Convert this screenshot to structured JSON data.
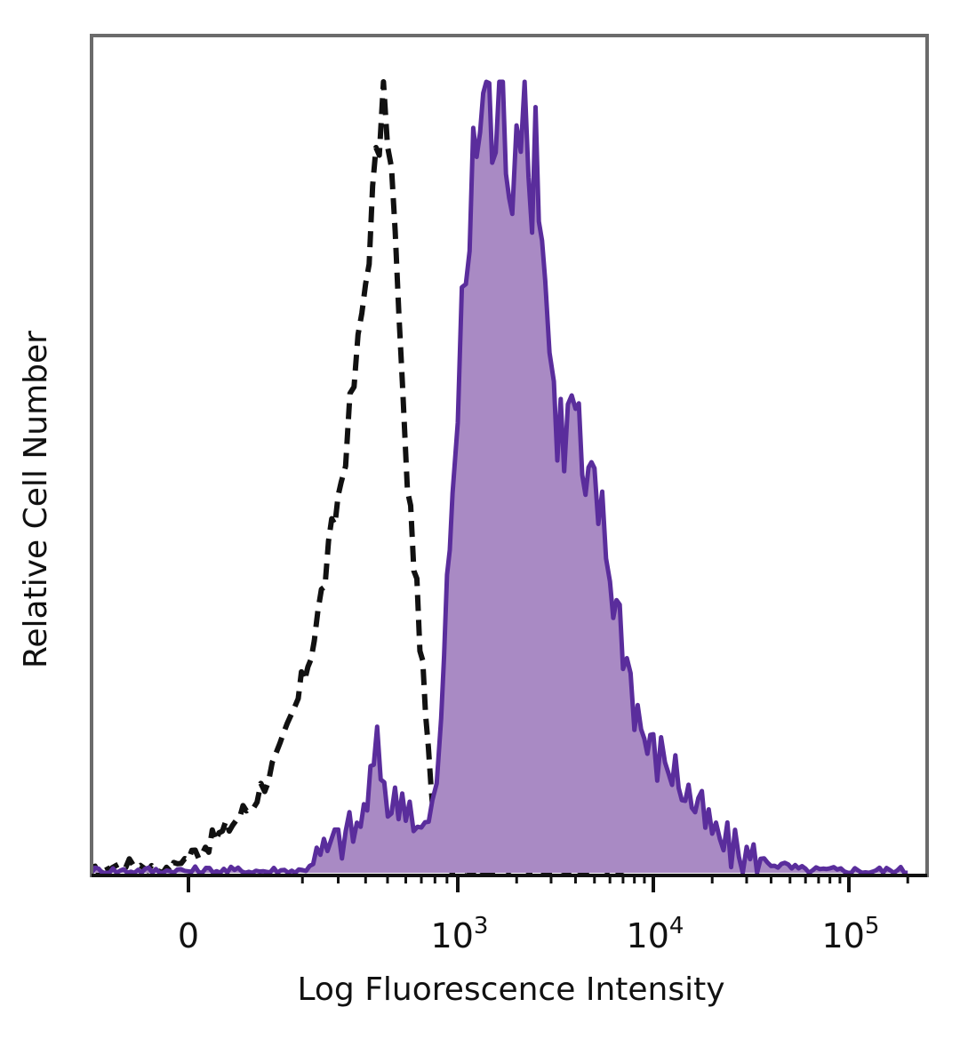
{
  "chart_data": {
    "type": "area",
    "xlabel": "Log Fluorescence Intensity",
    "ylabel": "Relative Cell Number",
    "x_scale": "biexponential",
    "xlim": [
      -300,
      200000
    ],
    "ylim": [
      0,
      1
    ],
    "grid": false,
    "ticks": [
      {
        "value": 0,
        "base": "0",
        "exp": ""
      },
      {
        "value": 1000,
        "base": "10",
        "exp": "3"
      },
      {
        "value": 10000,
        "base": "10",
        "exp": "4"
      },
      {
        "value": 100000,
        "base": "10",
        "exp": "5"
      }
    ],
    "series": [
      {
        "style": "dashed",
        "color": "#111111",
        "fill": "none",
        "points": [
          [
            -300,
            0.0
          ],
          [
            -150,
            0.01
          ],
          [
            -50,
            0.0
          ],
          [
            0,
            0.02
          ],
          [
            50,
            0.05
          ],
          [
            100,
            0.09
          ],
          [
            150,
            0.15
          ],
          [
            190,
            0.22
          ],
          [
            230,
            0.3
          ],
          [
            270,
            0.4
          ],
          [
            310,
            0.5
          ],
          [
            340,
            0.58
          ],
          [
            370,
            0.66
          ],
          [
            400,
            0.75
          ],
          [
            430,
            0.85
          ],
          [
            460,
            0.93
          ],
          [
            480,
            0.99
          ],
          [
            500,
            0.95
          ],
          [
            520,
            0.88
          ],
          [
            540,
            0.8
          ],
          [
            560,
            0.7
          ],
          [
            580,
            0.6
          ],
          [
            610,
            0.5
          ],
          [
            650,
            0.4
          ],
          [
            690,
            0.3
          ],
          [
            730,
            0.2
          ],
          [
            770,
            0.1
          ],
          [
            810,
            0.04
          ],
          [
            860,
            0.01
          ],
          [
            950,
            0.0
          ],
          [
            1200,
            0.0
          ],
          [
            10000,
            0.0
          ]
        ]
      },
      {
        "style": "solid",
        "color": "#5a2d9c",
        "fill": "#a98ac4",
        "points": [
          [
            -300,
            0.0
          ],
          [
            200,
            0.0
          ],
          [
            300,
            0.04
          ],
          [
            380,
            0.06
          ],
          [
            450,
            0.15
          ],
          [
            520,
            0.08
          ],
          [
            600,
            0.1
          ],
          [
            700,
            0.05
          ],
          [
            780,
            0.07
          ],
          [
            850,
            0.18
          ],
          [
            900,
            0.35
          ],
          [
            950,
            0.5
          ],
          [
            1000,
            0.6
          ],
          [
            1100,
            0.75
          ],
          [
            1200,
            0.88
          ],
          [
            1300,
            0.97
          ],
          [
            1400,
            1.0
          ],
          [
            1500,
            0.93
          ],
          [
            1700,
            0.97
          ],
          [
            1900,
            0.9
          ],
          [
            2100,
            1.0
          ],
          [
            2300,
            0.85
          ],
          [
            2500,
            0.95
          ],
          [
            2800,
            0.75
          ],
          [
            3100,
            0.6
          ],
          [
            3500,
            0.55
          ],
          [
            4000,
            0.6
          ],
          [
            4500,
            0.45
          ],
          [
            5000,
            0.5
          ],
          [
            6000,
            0.38
          ],
          [
            7000,
            0.3
          ],
          [
            8000,
            0.22
          ],
          [
            9000,
            0.17
          ],
          [
            10000,
            0.15
          ],
          [
            12000,
            0.14
          ],
          [
            14000,
            0.11
          ],
          [
            17000,
            0.08
          ],
          [
            20000,
            0.05
          ],
          [
            25000,
            0.03
          ],
          [
            30000,
            0.02
          ],
          [
            40000,
            0.01
          ],
          [
            60000,
            0.0
          ],
          [
            200000,
            0.0
          ]
        ]
      }
    ]
  }
}
